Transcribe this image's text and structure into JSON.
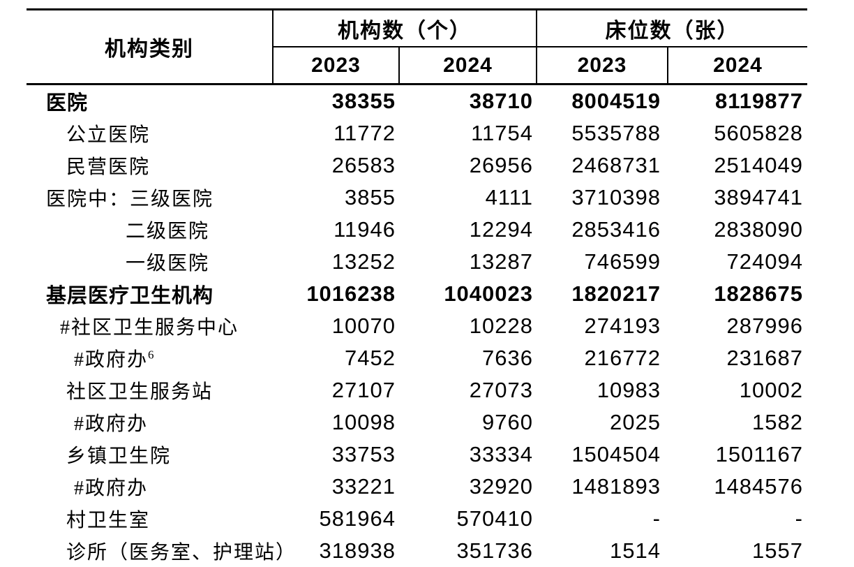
{
  "table": {
    "header": {
      "category": "机构类别",
      "group_institutions": "机构数（个）",
      "group_beds": "床位数（张）",
      "inst_year_2023": "2023",
      "inst_year_2024": "2024",
      "bed_year_2023": "2023",
      "bed_year_2024": "2024"
    },
    "rows": [
      {
        "label": "医院",
        "inst_2023": "38355",
        "inst_2024": "38710",
        "bed_2023": "8004519",
        "bed_2024": "8119877"
      },
      {
        "label": "公立医院",
        "inst_2023": "11772",
        "inst_2024": "11754",
        "bed_2023": "5535788",
        "bed_2024": "5605828"
      },
      {
        "label": "民营医院",
        "inst_2023": "26583",
        "inst_2024": "26956",
        "bed_2023": "2468731",
        "bed_2024": "2514049"
      },
      {
        "label": "医院中：三级医院",
        "inst_2023": "3855",
        "inst_2024": "4111",
        "bed_2023": "3710398",
        "bed_2024": "3894741"
      },
      {
        "label": "二级医院",
        "inst_2023": "11946",
        "inst_2024": "12294",
        "bed_2023": "2853416",
        "bed_2024": "2838090"
      },
      {
        "label": "一级医院",
        "inst_2023": "13252",
        "inst_2024": "13287",
        "bed_2023": "746599",
        "bed_2024": "724094"
      },
      {
        "label": "基层医疗卫生机构",
        "inst_2023": "1016238",
        "inst_2024": "1040023",
        "bed_2023": "1820217",
        "bed_2024": "1828675"
      },
      {
        "label": "#社区卫生服务中心",
        "inst_2023": "10070",
        "inst_2024": "10228",
        "bed_2023": "274193",
        "bed_2024": "287996"
      },
      {
        "label": "#政府办",
        "sup": "6",
        "inst_2023": "7452",
        "inst_2024": "7636",
        "bed_2023": "216772",
        "bed_2024": "231687"
      },
      {
        "label": "社区卫生服务站",
        "inst_2023": "27107",
        "inst_2024": "27073",
        "bed_2023": "10983",
        "bed_2024": "10002"
      },
      {
        "label": "#政府办",
        "inst_2023": "10098",
        "inst_2024": "9760",
        "bed_2023": "2025",
        "bed_2024": "1582"
      },
      {
        "label": "乡镇卫生院",
        "inst_2023": "33753",
        "inst_2024": "33334",
        "bed_2023": "1504504",
        "bed_2024": "1501167"
      },
      {
        "label": "#政府办",
        "inst_2023": "33221",
        "inst_2024": "32920",
        "bed_2023": "1481893",
        "bed_2024": "1484576"
      },
      {
        "label": "村卫生室",
        "inst_2023": "581964",
        "inst_2024": "570410",
        "bed_2023": "-",
        "bed_2024": "-"
      },
      {
        "label": "诊所（医务室、护理站）",
        "inst_2023": "318938",
        "inst_2024": "351736",
        "bed_2023": "1514",
        "bed_2024": "1557"
      }
    ]
  }
}
